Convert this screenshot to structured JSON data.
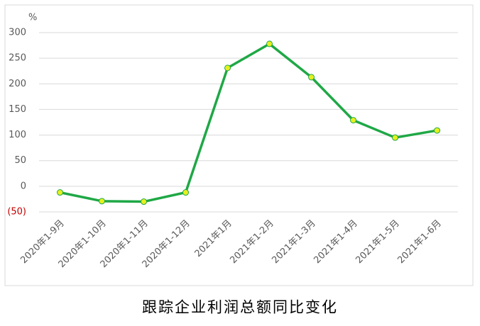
{
  "chart_data": {
    "type": "line",
    "title": "跟踪企业利润总额同比变化",
    "y_unit": "%",
    "categories": [
      "2020年1-9月",
      "2020年1-10月",
      "2020年1-11月",
      "2020年1-12月",
      "2021年1月",
      "2021年1-2月",
      "2021年1-3月",
      "2021年1-4月",
      "2021年1-5月",
      "2021年1-6月"
    ],
    "values": [
      -12,
      -29,
      -30,
      -12,
      231,
      278,
      213,
      129,
      95,
      109
    ],
    "color": "#1fa846",
    "marker_color": "#e6f01e",
    "ylim": [
      -50,
      300
    ],
    "yticks": [
      {
        "value": -50,
        "label": "(50)"
      },
      0,
      50,
      100,
      150,
      200,
      250,
      300
    ],
    "negative_tick_color": "#c00000",
    "grid": true
  }
}
